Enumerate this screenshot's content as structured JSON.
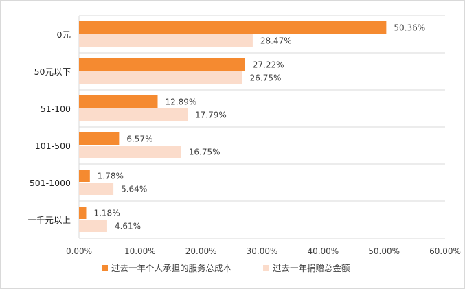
{
  "colors": {
    "series1": "#f58a30",
    "series2": "#fbdccb",
    "grid": "#d9d9d9",
    "text": "#404040"
  },
  "chart_data": {
    "type": "bar",
    "orientation": "horizontal",
    "categories": [
      "0元",
      "50元以下",
      "51-100",
      "101-500",
      "501-1000",
      "一千元以上"
    ],
    "series": [
      {
        "name": "过去一年个人承担的服务总成本",
        "values": [
          50.36,
          27.22,
          12.89,
          6.57,
          1.78,
          1.18
        ]
      },
      {
        "name": "过去一年捐赠总金额",
        "values": [
          28.47,
          26.75,
          17.79,
          16.75,
          5.64,
          4.61
        ]
      }
    ],
    "value_labels": [
      [
        "50.36%",
        "27.22%",
        "12.89%",
        "6.57%",
        "1.78%",
        "1.18%"
      ],
      [
        "28.47%",
        "26.75%",
        "17.79%",
        "16.75%",
        "5.64%",
        "4.61%"
      ]
    ],
    "xlim": [
      0,
      60
    ],
    "xticks": [
      "0.00%",
      "10.00%",
      "20.00%",
      "30.00%",
      "40.00%",
      "50.00%",
      "60.00%"
    ],
    "title": "",
    "xlabel": "",
    "ylabel": "",
    "grid": true,
    "legend_position": "bottom"
  }
}
